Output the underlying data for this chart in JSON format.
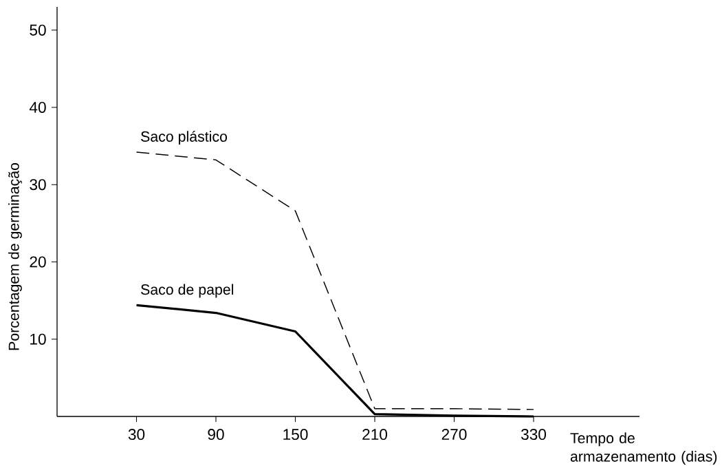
{
  "chart_data": {
    "type": "line",
    "xlabel": "Tempo de armazenamento (dias)",
    "ylabel": "Porcentagem de germinação",
    "x": [
      30,
      90,
      150,
      210,
      270,
      330
    ],
    "series": [
      {
        "name": "Saco plástico",
        "color": "#000000",
        "line_style": "dashed",
        "values": [
          34.2,
          33.2,
          26.6,
          1.0,
          1.0,
          0.9
        ]
      },
      {
        "name": "Saco de papel",
        "color": "#000000",
        "line_style": "solid",
        "values": [
          14.4,
          13.4,
          11.0,
          0.3,
          0.1,
          0.0
        ]
      }
    ],
    "xlim": [
      -30,
      410
    ],
    "ylim": [
      0,
      53
    ],
    "xticks": [
      30,
      90,
      150,
      210,
      270,
      330
    ],
    "yticks": [
      10,
      20,
      30,
      40,
      50
    ],
    "grid": false,
    "legend": false
  }
}
